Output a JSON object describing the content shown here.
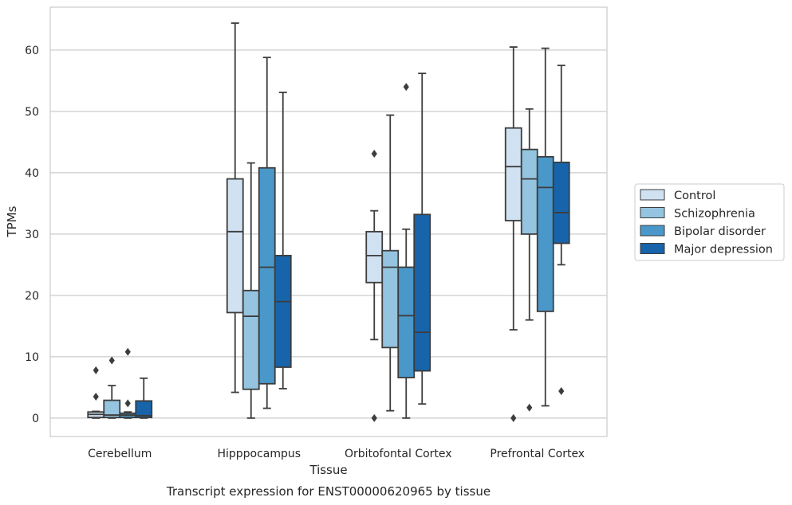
{
  "chart_data": {
    "type": "box",
    "title": "Transcript expression for ENST00000620965 by tissue",
    "xlabel": "Tissue",
    "ylabel": "TPMs",
    "ylim": [
      -3,
      67
    ],
    "yticks": [
      0,
      10,
      20,
      30,
      40,
      50,
      60
    ],
    "grid": "horizontal",
    "legend_position": "right",
    "categories": [
      "Cerebellum",
      "Hipppocampus",
      "Orbitofontal Cortex",
      "Prefrontal Cortex"
    ],
    "series": [
      {
        "name": "Control",
        "color": "#d0e1f2",
        "boxes": [
          {
            "whislo": 0,
            "q1": 0.1,
            "med": 0.6,
            "q3": 1.0,
            "whishi": 1.1,
            "fliers": [
              3.5,
              7.8
            ]
          },
          {
            "whislo": 4.2,
            "q1": 17.2,
            "med": 30.4,
            "q3": 39.0,
            "whishi": 64.4,
            "fliers": []
          },
          {
            "whislo": 12.8,
            "q1": 22.1,
            "med": 26.5,
            "q3": 30.4,
            "whishi": 33.8,
            "fliers": [
              43.1,
              0
            ]
          },
          {
            "whislo": 14.4,
            "q1": 32.2,
            "med": 41.0,
            "q3": 47.3,
            "whishi": 60.5,
            "fliers": [
              0
            ]
          }
        ]
      },
      {
        "name": "Schizophrenia",
        "color": "#94c4df",
        "boxes": [
          {
            "whislo": 0,
            "q1": 0.1,
            "med": 0.5,
            "q3": 2.9,
            "whishi": 5.3,
            "fliers": [
              9.4
            ]
          },
          {
            "whislo": 0,
            "q1": 4.7,
            "med": 16.6,
            "q3": 20.8,
            "whishi": 41.6,
            "fliers": []
          },
          {
            "whislo": 1.2,
            "q1": 11.5,
            "med": 24.6,
            "q3": 27.3,
            "whishi": 49.4,
            "fliers": []
          },
          {
            "whislo": 16.0,
            "q1": 30.0,
            "med": 39.0,
            "q3": 43.8,
            "whishi": 50.4,
            "fliers": [
              1.7
            ]
          }
        ]
      },
      {
        "name": "Bipolar disorder",
        "color": "#4a98c9",
        "boxes": [
          {
            "whislo": 0,
            "q1": 0.1,
            "med": 0.5,
            "q3": 0.8,
            "whishi": 1.0,
            "fliers": [
              2.4,
              10.8
            ]
          },
          {
            "whislo": 1.6,
            "q1": 5.6,
            "med": 24.6,
            "q3": 40.8,
            "whishi": 58.8,
            "fliers": []
          },
          {
            "whislo": 0,
            "q1": 6.6,
            "med": 16.7,
            "q3": 24.6,
            "whishi": 30.8,
            "fliers": [
              54.0
            ]
          },
          {
            "whislo": 2.0,
            "q1": 17.4,
            "med": 37.6,
            "q3": 42.6,
            "whishi": 60.3,
            "fliers": []
          }
        ]
      },
      {
        "name": "Major depression",
        "color": "#1764ab",
        "boxes": [
          {
            "whislo": 0,
            "q1": 0.1,
            "med": 0.4,
            "q3": 2.8,
            "whishi": 6.5,
            "fliers": []
          },
          {
            "whislo": 4.8,
            "q1": 8.3,
            "med": 19.0,
            "q3": 26.5,
            "whishi": 53.1,
            "fliers": []
          },
          {
            "whislo": 2.3,
            "q1": 7.7,
            "med": 14.0,
            "q3": 33.2,
            "whishi": 56.2,
            "fliers": []
          },
          {
            "whislo": 25.0,
            "q1": 28.5,
            "med": 33.5,
            "q3": 41.7,
            "whishi": 57.5,
            "fliers": [
              4.4
            ]
          }
        ]
      }
    ]
  }
}
